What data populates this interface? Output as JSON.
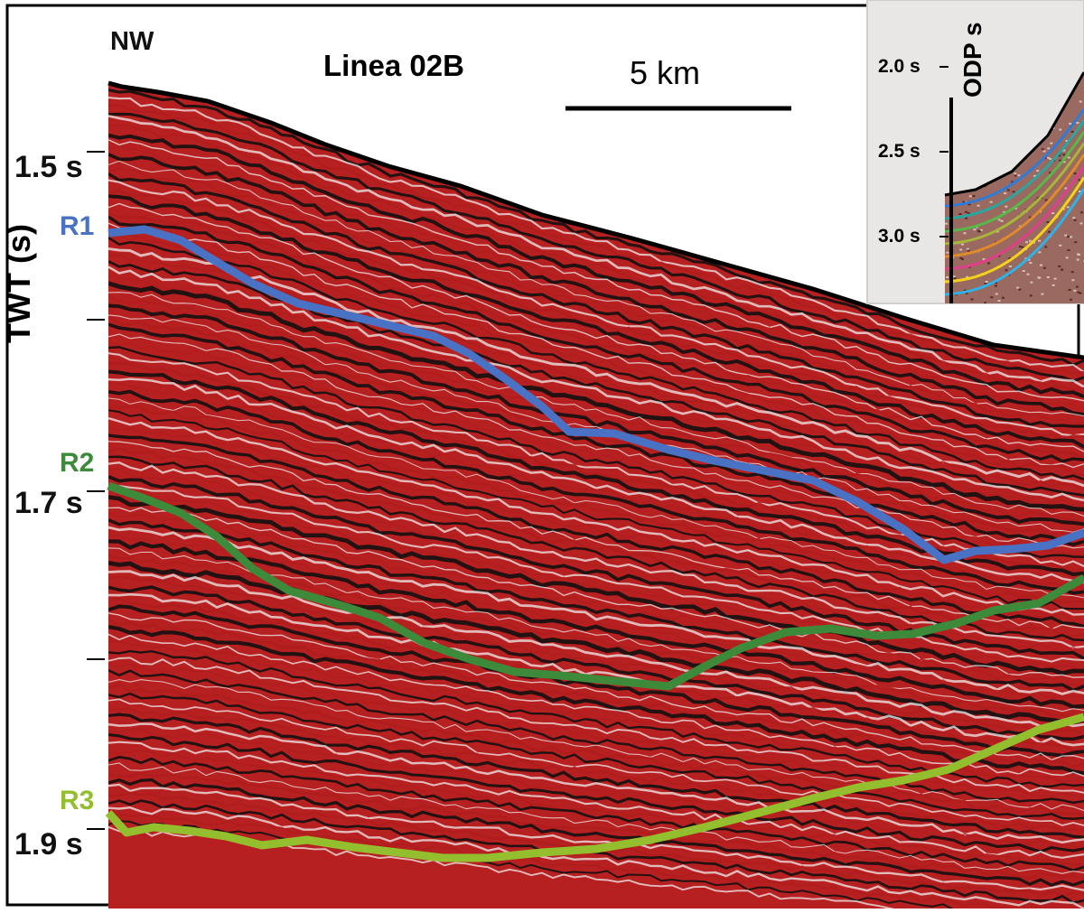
{
  "figure": {
    "title": "Linea 02B",
    "direction_label": "NW",
    "scale_bar_label": "5 km",
    "y_axis_title": "TWT (s)",
    "y_ticks": [
      "1.5 s",
      "1.7 s",
      "1.9 s"
    ],
    "reflectors": [
      {
        "name": "R1",
        "color": "#4a72c4"
      },
      {
        "name": "R2",
        "color": "#3d8a3a"
      },
      {
        "name": "R3",
        "color": "#93be2e"
      }
    ],
    "seismic_colors": {
      "red": "#b01c1c",
      "black": "#141010",
      "white": "#f2eeee"
    }
  },
  "inset": {
    "title": "ODP s",
    "ticks": [
      "2.0 s",
      "2.5 s",
      "3.0 s"
    ],
    "horizon_colors": [
      "#2f7bd8",
      "#2aa6a0",
      "#58b848",
      "#a8b638",
      "#e08a2a",
      "#e23f8a",
      "#f4d21a",
      "#2eb3e8"
    ]
  }
}
